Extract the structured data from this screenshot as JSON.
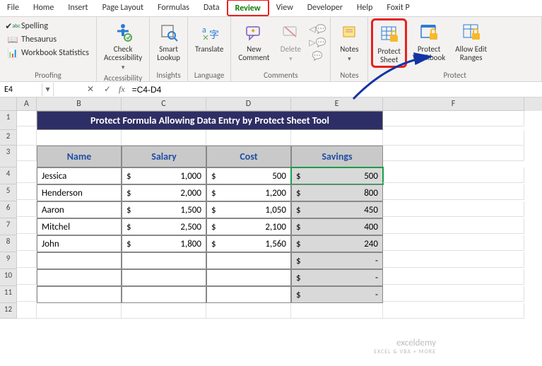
{
  "tabs": [
    "File",
    "Home",
    "Insert",
    "Page Layout",
    "Formulas",
    "Data",
    "Review",
    "View",
    "Developer",
    "Help",
    "Foxit P"
  ],
  "active_tab": "Review",
  "ribbon": {
    "proofing": {
      "label": "Proofing",
      "items": [
        "Spelling",
        "Thesaurus",
        "Workbook Statistics"
      ]
    },
    "accessibility": {
      "label": "Accessibility",
      "btn": "Check\nAccessibility"
    },
    "insights": {
      "label": "Insights",
      "btn": "Smart\nLookup"
    },
    "language": {
      "label": "Language",
      "btn": "Translate"
    },
    "comments": {
      "label": "Comments",
      "new": "New\nComment",
      "delete": "Delete"
    },
    "notes": {
      "label": "Notes",
      "btn": "Notes"
    },
    "protect": {
      "label": "Protect",
      "sheet": "Protect\nSheet",
      "wb": "Protect\nWorkbook",
      "ranges": "Allow Edit\nRanges"
    }
  },
  "cell_ref": "E4",
  "formula": "=C4-D4",
  "columns": [
    "A",
    "B",
    "C",
    "D",
    "E",
    "F"
  ],
  "title": "Protect Formula Allowing Data Entry by Protect Sheet Tool",
  "headers": [
    "Name",
    "Salary",
    "Cost",
    "Savings"
  ],
  "data_rows": [
    {
      "name": "Jessica",
      "salary": "1,000",
      "cost": "500",
      "savings": "500"
    },
    {
      "name": "Henderson",
      "salary": "2,000",
      "cost": "1,200",
      "savings": "800"
    },
    {
      "name": "Aaron",
      "salary": "1,500",
      "cost": "1,050",
      "savings": "450"
    },
    {
      "name": "Mitchel",
      "salary": "2,500",
      "cost": "2,100",
      "savings": "400"
    },
    {
      "name": "John",
      "salary": "1,800",
      "cost": "1,560",
      "savings": "240"
    }
  ],
  "empty_savings": [
    "-",
    "-",
    "-"
  ],
  "watermark": {
    "main": "exceldemy",
    "sub": "EXCEL & VBA + MORE"
  },
  "colors": {
    "title_bg": "#2e2e66",
    "header_bg": "#c9c9c9",
    "header_fg": "#1f4ea3",
    "savings_bg": "#d9d9d9",
    "highlight": "#e82020",
    "selection": "#1a9e49",
    "arrow": "#1434a4"
  }
}
